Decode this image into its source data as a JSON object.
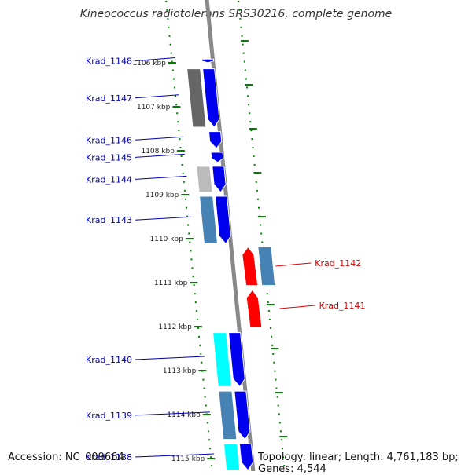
{
  "title": "Kineococcus radiotolerans SRS30216, complete genome",
  "accession": "Accession: NC_009664",
  "summary": "Topology: linear; Length: 4,761,183 bp; Genes: 4,544",
  "colors": {
    "forward_label": "#0000aa",
    "reverse_label": "#dd0000",
    "cds_forward": "#0000ee",
    "cds_reverse": "#ff0000",
    "tick": "#008000",
    "backbone": "#888888"
  },
  "scale_labels": [
    {
      "name": "1106 kbp",
      "kbp": 1106
    },
    {
      "name": "1107 kbp",
      "kbp": 1107
    },
    {
      "name": "1108 kbp",
      "kbp": 1108
    },
    {
      "name": "1109 kbp",
      "kbp": 1109
    },
    {
      "name": "1110 kbp",
      "kbp": 1110
    },
    {
      "name": "1111 kbp",
      "kbp": 1111
    },
    {
      "name": "1112 kbp",
      "kbp": 1112
    },
    {
      "name": "1113 kbp",
      "kbp": 1113
    },
    {
      "name": "1114 kbp",
      "kbp": 1114
    },
    {
      "name": "1115 kbp",
      "kbp": 1115
    }
  ],
  "genes": [
    {
      "name": "Krad_1148",
      "strand": "+",
      "start_kbp": 1105.88,
      "end_kbp": 1106.03,
      "cog_color": "#ffffff"
    },
    {
      "name": "Krad_1147",
      "strand": "+",
      "start_kbp": 1106.1,
      "end_kbp": 1107.5,
      "cog_color": "#666666"
    },
    {
      "name": "Krad_1146",
      "strand": "+",
      "start_kbp": 1107.53,
      "end_kbp": 1107.98,
      "cog_color": "#ffffff"
    },
    {
      "name": "Krad_1145",
      "strand": "+",
      "start_kbp": 1108.0,
      "end_kbp": 1108.3,
      "cog_color": "#ffffff"
    },
    {
      "name": "Krad_1144",
      "strand": "+",
      "start_kbp": 1108.32,
      "end_kbp": 1108.98,
      "cog_color": "#bbbbbb"
    },
    {
      "name": "Krad_1143",
      "strand": "+",
      "start_kbp": 1109.0,
      "end_kbp": 1110.15,
      "cog_color": "#4682b4"
    },
    {
      "name": "Krad_1142",
      "strand": "-",
      "start_kbp": 1110.15,
      "end_kbp": 1111.1,
      "cog_color": "#4682b4"
    },
    {
      "name": "Krad_1141",
      "strand": "-",
      "start_kbp": 1111.13,
      "end_kbp": 1112.05,
      "cog_color": "#ffffff"
    },
    {
      "name": "Krad_1140",
      "strand": "+",
      "start_kbp": 1112.1,
      "end_kbp": 1113.4,
      "cog_color": "#00ffff"
    },
    {
      "name": "Krad_1139",
      "strand": "+",
      "start_kbp": 1113.43,
      "end_kbp": 1114.6,
      "cog_color": "#4682b4"
    },
    {
      "name": "Krad_1138",
      "strand": "+",
      "start_kbp": 1114.63,
      "end_kbp": 1115.3,
      "cog_color": "#00ffff"
    }
  ]
}
